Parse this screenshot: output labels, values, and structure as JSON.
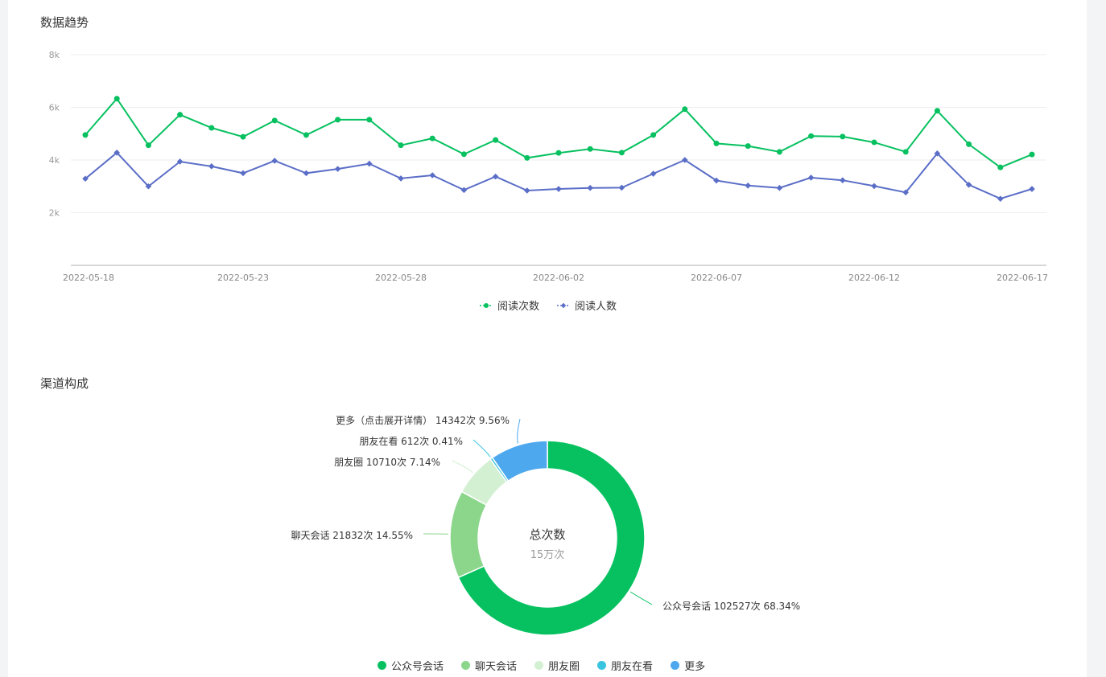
{
  "trend_section": {
    "title": "数据趋势"
  },
  "channel_section": {
    "title": "渠道构成"
  },
  "colors": {
    "reads": "#07c160",
    "readers": "#5b6ec7",
    "grid": "#eeeeee",
    "axis": "#cccccc",
    "pie": [
      "#07c160",
      "#8cd68c",
      "#d3f0d3",
      "#39c5e0",
      "#4ea8ee"
    ]
  },
  "chart_data": [
    {
      "type": "line",
      "title": "数据趋势",
      "x_tick_labels": [
        "2022-05-18",
        "2022-05-23",
        "2022-05-28",
        "2022-06-02",
        "2022-06-07",
        "2022-06-12",
        "2022-06-17"
      ],
      "x_start": "2022-05-18",
      "x_end": "2022-06-17",
      "y_ticks": [
        "2k",
        "4k",
        "6k",
        "8k"
      ],
      "ylim": [
        0,
        8000
      ],
      "grid": true,
      "legend_position": "bottom-center",
      "series": [
        {
          "name": "阅读次数",
          "marker": "circle",
          "values": [
            4950,
            6330,
            4560,
            5720,
            5220,
            4880,
            5500,
            4950,
            5530,
            5530,
            4560,
            4820,
            4220,
            4760,
            4080,
            4270,
            4420,
            4280,
            4950,
            5930,
            4630,
            4530,
            4310,
            4910,
            4890,
            4670,
            4310,
            5870,
            4600,
            3720,
            4210
          ]
        },
        {
          "name": "阅读人数",
          "marker": "diamond",
          "values": [
            3290,
            4280,
            3000,
            3940,
            3760,
            3500,
            3970,
            3500,
            3660,
            3860,
            3300,
            3420,
            2860,
            3370,
            2840,
            2900,
            2940,
            2950,
            3480,
            4000,
            3220,
            3030,
            2940,
            3330,
            3230,
            3010,
            2770,
            4250,
            3060,
            2530,
            2900
          ]
        }
      ]
    },
    {
      "type": "pie",
      "title": "渠道构成",
      "center_title": "总次数",
      "center_value": "15万次",
      "legend_position": "bottom-center",
      "slices": [
        {
          "name": "公众号会话",
          "label": "公众号会话 102527次 68.34%",
          "value": 102527,
          "percent": 68.34
        },
        {
          "name": "聊天会话",
          "label": "聊天会话 21832次 14.55%",
          "value": 21832,
          "percent": 14.55
        },
        {
          "name": "朋友圈",
          "label": "朋友圈 10710次 7.14%",
          "value": 10710,
          "percent": 7.14
        },
        {
          "name": "朋友在看",
          "label": "朋友在看 612次 0.41%",
          "value": 612,
          "percent": 0.41
        },
        {
          "name": "更多",
          "label": "更多（点击展开详情） 14342次 9.56%",
          "value": 14342,
          "percent": 9.56
        }
      ]
    }
  ]
}
